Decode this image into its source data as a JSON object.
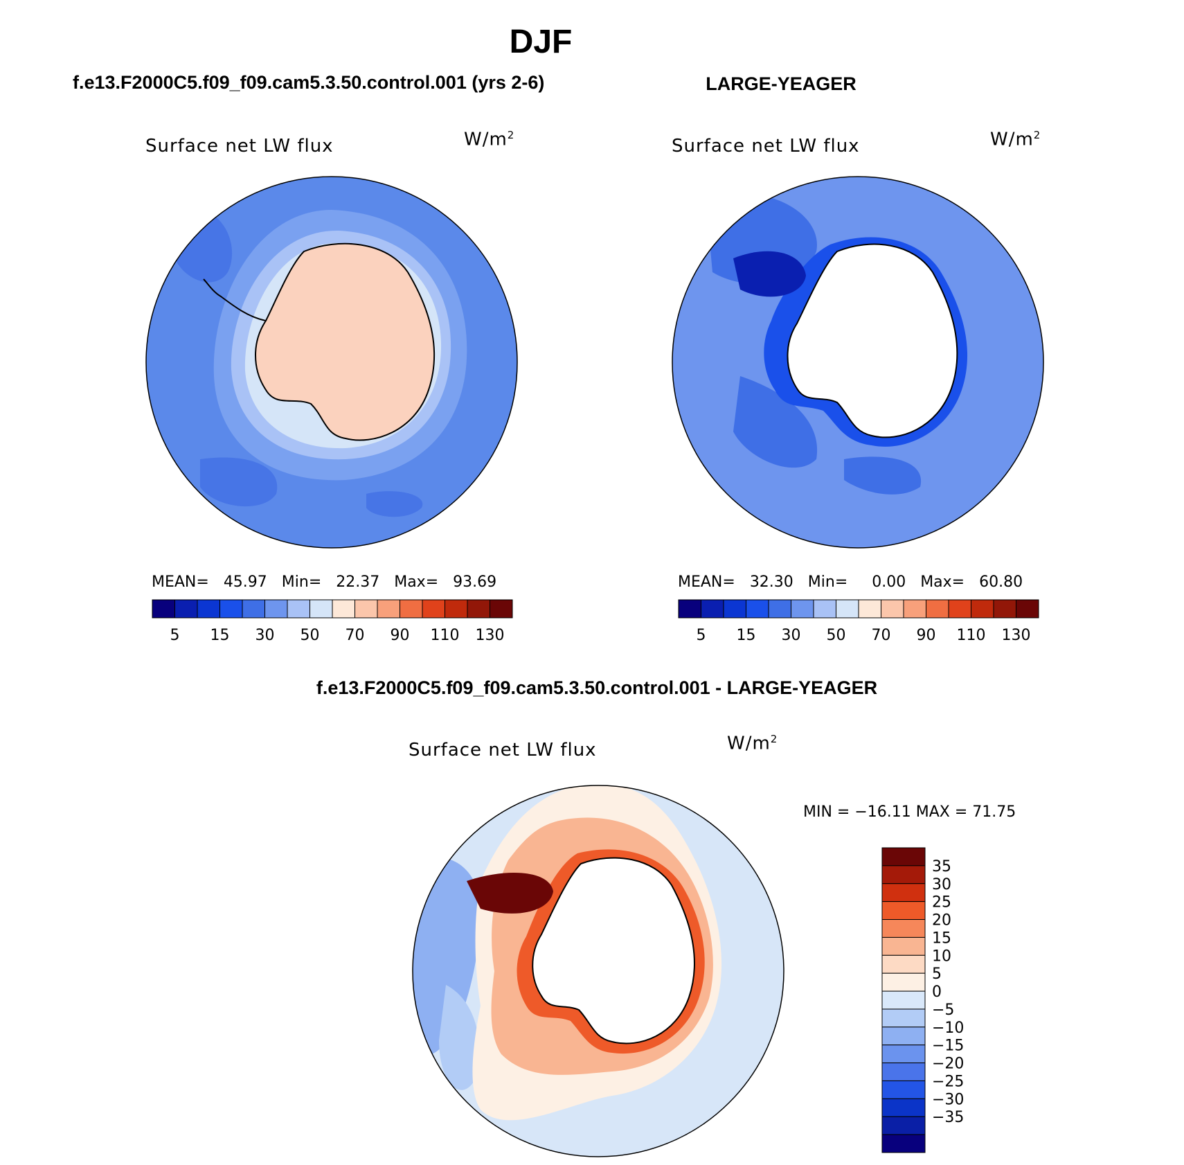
{
  "season_title": "DJF",
  "panels": [
    {
      "title": "f.e13.F2000C5.f09_f09.cam5.3.50.control.001 (yrs 2-6)",
      "variable": "Surface net LW flux",
      "units_base": "W/m",
      "units_exp": "2",
      "stats": {
        "mean_label": "MEAN=",
        "mean": "45.97",
        "min_label": "Min=",
        "min": "22.37",
        "max_label": "Max=",
        "max": "93.69"
      }
    },
    {
      "title": "LARGE-YEAGER",
      "variable": "Surface net LW flux",
      "units_base": "W/m",
      "units_exp": "2",
      "stats": {
        "mean_label": "MEAN=",
        "mean": "32.30",
        "min_label": "Min=",
        "min": "0.00",
        "max_label": "Max=",
        "max": "60.80"
      }
    },
    {
      "title": "f.e13.F2000C5.f09_f09.cam5.3.50.control.001 - LARGE-YEAGER",
      "variable": "Surface net LW flux",
      "units_base": "W/m",
      "units_exp": "2",
      "minmax": "MIN = −16.11 MAX =  71.75"
    }
  ],
  "colorbar_main": {
    "colors": [
      "#08007d",
      "#0a1fb0",
      "#0b36d2",
      "#1a50ea",
      "#3f6fe6",
      "#6e95ee",
      "#a9c2f6",
      "#d5e5f8",
      "#fde8d8",
      "#fbc6ab",
      "#f8a07b",
      "#f06e42",
      "#e0421b",
      "#c02a0c",
      "#921708",
      "#6a0606"
    ],
    "tick_labels": [
      "5",
      "15",
      "30",
      "50",
      "70",
      "90",
      "110",
      "130"
    ]
  },
  "colorbar_diff": {
    "colors": [
      "#6a0606",
      "#a41a09",
      "#d0300f",
      "#ee5a29",
      "#f6875a",
      "#f9b592",
      "#fddac4",
      "#fdf0e4",
      "#d9e8fa",
      "#b2ccf6",
      "#8eb0f2",
      "#6b93ee",
      "#4a74ea",
      "#2355e6",
      "#0b34c8",
      "#0a1fa6",
      "#08007d"
    ],
    "tick_labels": [
      "35",
      "30",
      "25",
      "20",
      "15",
      "10",
      "5",
      "0",
      "−5",
      "−10",
      "−15",
      "−20",
      "−25",
      "−30",
      "−35"
    ]
  },
  "colors": {
    "ocean_model": "#5b89ea",
    "ocean_obs": "#5b89ea",
    "ocean_diff": "#d7e6f8",
    "land_model": "#fbd2be",
    "land_mask": "#ffffff"
  }
}
